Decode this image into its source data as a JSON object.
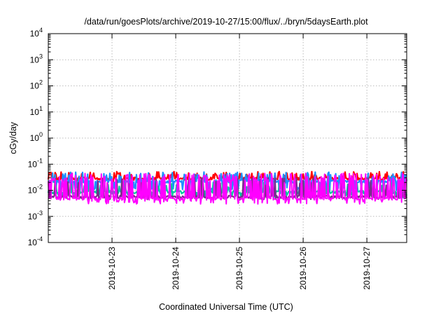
{
  "chart_data": {
    "type": "line",
    "title": "/data/run/goesPlots/archive/2019-10-27/15:00/flux/../bryn/5daysEarth.plot",
    "xlabel": "Coordinated Universal Time (UTC)",
    "ylabel": "cGy/day",
    "yscale": "log",
    "ylim": [
      0.0001,
      10000
    ],
    "xlim": [
      "2019-10-22T00:00",
      "2019-10-27T15:00"
    ],
    "grid": true,
    "legend": "none",
    "y_ticks": [
      {
        "base": "10",
        "exp": "-4"
      },
      {
        "base": "10",
        "exp": "-3"
      },
      {
        "base": "10",
        "exp": "-2"
      },
      {
        "base": "10",
        "exp": "-1"
      },
      {
        "base": "10",
        "exp": "0"
      },
      {
        "base": "10",
        "exp": "1"
      },
      {
        "base": "10",
        "exp": "2"
      },
      {
        "base": "10",
        "exp": "3"
      },
      {
        "base": "10",
        "exp": "4"
      }
    ],
    "x_ticks": [
      "2019-10-23",
      "2019-10-24",
      "2019-10-25",
      "2019-10-26",
      "2019-10-27"
    ],
    "series": [
      {
        "color": "#ff0000",
        "base": 0.028,
        "lo": 0.024,
        "spike": 0.052,
        "spikeProb": 0.22,
        "dipProb": 0.04,
        "seed": 11
      },
      {
        "color": "#1e90ff",
        "base": 0.022,
        "lo": 0.011,
        "spike": 0.05,
        "spikeProb": 0.15,
        "dipProb": 0.22,
        "seed": 23
      },
      {
        "color": "#00c8a0",
        "base": 0.0085,
        "lo": 0.006,
        "spike": 0.02,
        "spikeProb": 0.12,
        "dipProb": 0.08,
        "seed": 37
      },
      {
        "color": "#7a2d8e",
        "base": 0.0056,
        "lo": 0.0048,
        "spike": 0.03,
        "spikeProb": 0.16,
        "dipProb": 0.05,
        "seed": 41
      },
      {
        "color": "#ff00ff",
        "base": 0.0048,
        "lo": 0.0035,
        "spike": 0.045,
        "spikeProb": 0.3,
        "dipProb": 0.15,
        "seed": 53
      }
    ]
  }
}
